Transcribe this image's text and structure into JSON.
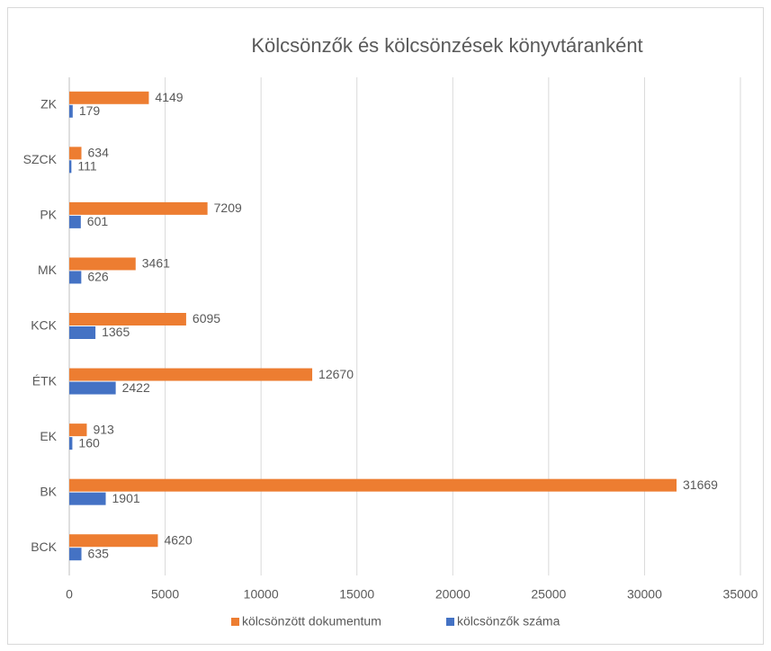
{
  "chart_data": {
    "type": "hbar",
    "title": "Kölcsönzők és kölcsönzések könyvtáranként",
    "categories": [
      "ZK",
      "SZCK",
      "PK",
      "MK",
      "KCK",
      "ÉTK",
      "EK",
      "BK",
      "BCK"
    ],
    "series": [
      {
        "name": "kölcsönzött dokumentum",
        "color": "#ED7D31",
        "values": [
          4149,
          634,
          7209,
          3461,
          6095,
          12670,
          913,
          31669,
          4620
        ]
      },
      {
        "name": "kölcsönzők száma",
        "color": "#4472C4",
        "values": [
          179,
          111,
          601,
          626,
          1365,
          2422,
          160,
          1901,
          635
        ]
      }
    ],
    "xlim": [
      0,
      35000
    ],
    "xticks": [
      0,
      5000,
      10000,
      15000,
      20000,
      25000,
      30000,
      35000
    ],
    "grid": true,
    "legend": "bottom"
  }
}
